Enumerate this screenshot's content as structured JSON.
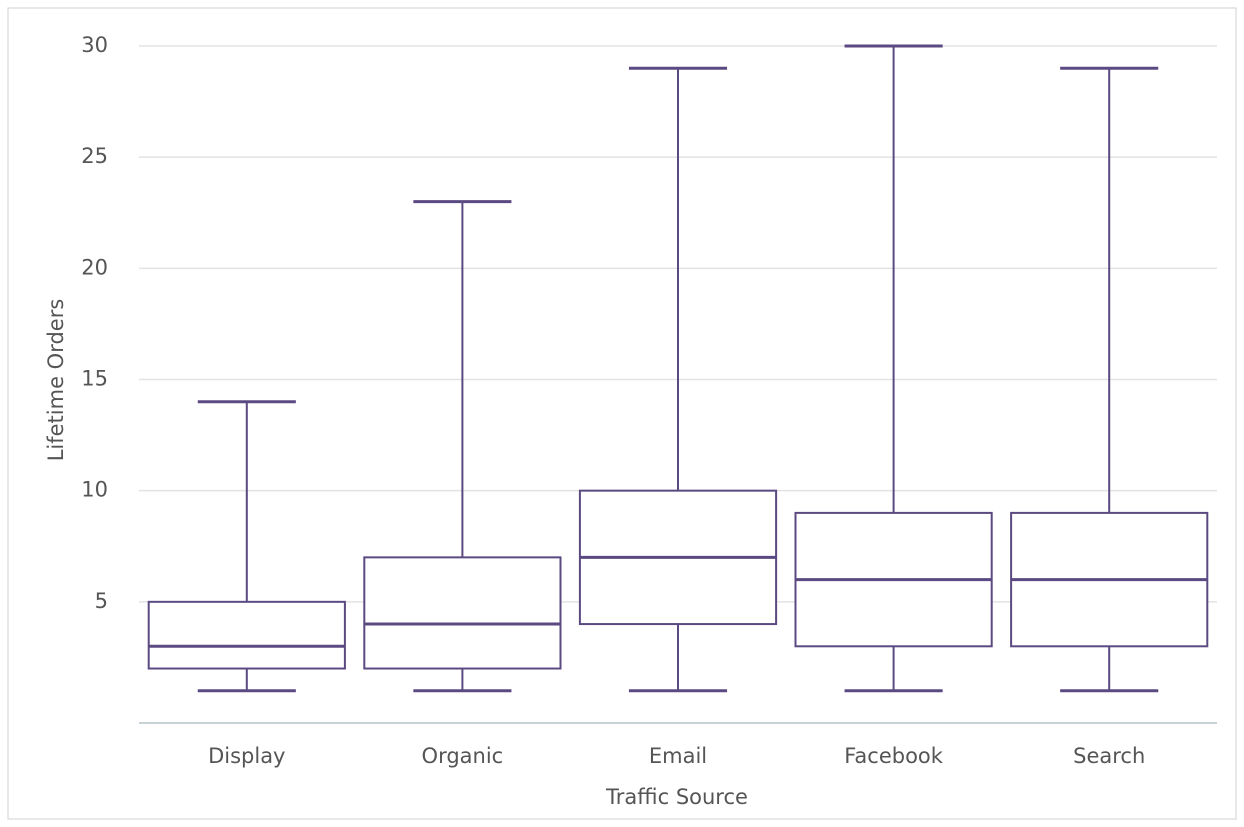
{
  "chart_data": {
    "type": "box",
    "x_label": "Traffic Source",
    "y_label": "Lifetime Orders",
    "categories": [
      "Display",
      "Organic",
      "Email",
      "Facebook",
      "Search"
    ],
    "min": [
      1,
      1,
      1,
      1,
      1
    ],
    "q1": [
      2,
      2,
      4,
      3,
      3
    ],
    "median": [
      3,
      4,
      7,
      6,
      6
    ],
    "q3": [
      5,
      7,
      10,
      9,
      9
    ],
    "max": [
      14,
      23,
      29,
      30,
      29
    ],
    "color": "#5b4a82",
    "ylim": [
      -0.45,
      30
    ],
    "yticks": [
      5,
      10,
      15,
      20,
      25,
      30
    ],
    "grid": true
  }
}
